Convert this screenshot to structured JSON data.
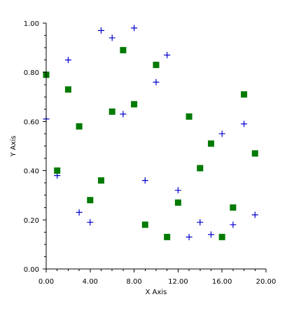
{
  "chart_data": {
    "type": "scatter",
    "title": "",
    "xlabel": "X Axis",
    "ylabel": "Y Axis",
    "xlim": [
      0,
      20
    ],
    "ylim": [
      0,
      1
    ],
    "x_ticks": [
      "0.00",
      "4.00",
      "8.00",
      "12.00",
      "16.00",
      "20.00"
    ],
    "y_ticks": [
      "0.00",
      "0.20",
      "0.40",
      "0.60",
      "0.80",
      "1.00"
    ],
    "grid": false,
    "legend": "none",
    "series": [
      {
        "marker": "plus",
        "color": "#0000cc",
        "x": [
          0,
          1,
          2,
          3,
          4,
          5,
          6,
          7,
          8,
          9,
          10,
          11,
          12,
          13,
          14,
          15,
          16,
          17,
          18,
          19
        ],
        "y": [
          0.61,
          0.38,
          0.85,
          0.23,
          0.19,
          0.97,
          0.94,
          0.63,
          0.98,
          0.36,
          0.76,
          0.87,
          0.32,
          0.13,
          0.19,
          0.14,
          0.55,
          0.18,
          0.59,
          0.22
        ]
      },
      {
        "marker": "square",
        "color": "#007a00",
        "x": [
          0,
          1,
          2,
          3,
          4,
          5,
          6,
          7,
          8,
          9,
          10,
          11,
          12,
          13,
          14,
          15,
          16,
          17,
          18,
          19
        ],
        "y": [
          0.79,
          0.4,
          0.73,
          0.58,
          0.28,
          0.36,
          0.64,
          0.89,
          0.67,
          0.18,
          0.83,
          0.13,
          0.27,
          0.62,
          0.41,
          0.51,
          0.13,
          0.25,
          0.71,
          0.47
        ]
      }
    ]
  }
}
